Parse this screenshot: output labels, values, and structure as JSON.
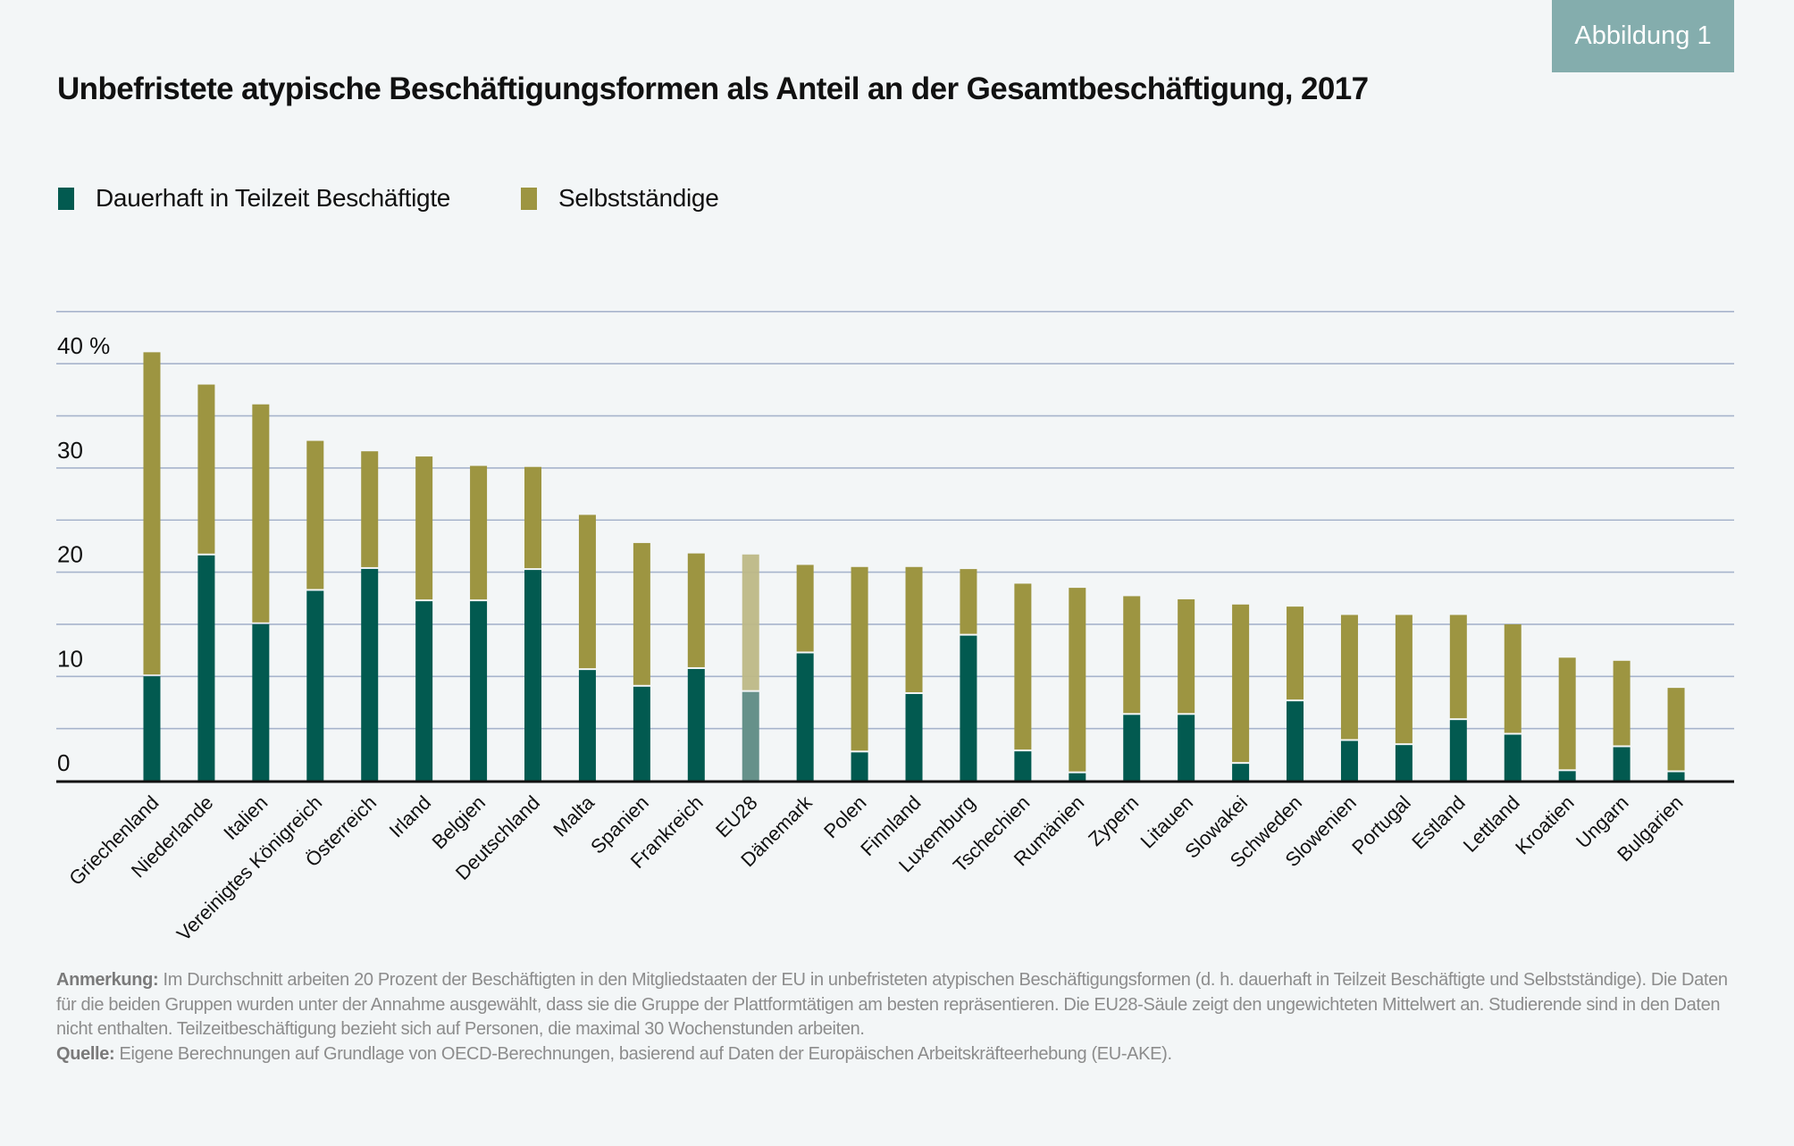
{
  "badge": {
    "label": "Abbildung 1"
  },
  "colors": {
    "parttime": "#025a50",
    "selfemployed": "#9d9541",
    "parttime_highlight": "#66918a",
    "selfemployed_highlight": "#bdb886",
    "highlight_label": "#025a50",
    "gridline": "#a7b4cc",
    "axis": "#111111",
    "badge": "#84adad"
  },
  "legend": [
    {
      "label": "Dauerhaft in Teilzeit Beschäftigte",
      "color": "#025a50"
    },
    {
      "label": "Selbstständige",
      "color": "#9d9541"
    }
  ],
  "footnote": {
    "note_label": "Anmerkung:",
    "note_text": " Im Durchschnitt arbeiten 20 Prozent der Beschäftigten in den Mitgliedstaaten der EU in unbefristeten atypischen Beschäftigungsformen (d. h. dauerhaft in Teilzeit Beschäftigte und Selbstständige). Die Daten für die beiden Gruppen wurden unter der Annahme ausgewählt, dass sie die Gruppe der Plattformtätigen am besten repräsentieren. Die EU28-Säule zeigt den ungewichteten Mittelwert an. Studierende sind in den Daten nicht enthalten. Teilzeitbeschäftigung bezieht sich auf Personen, die maximal 30 Wochenstunden arbeiten.",
    "source_label": "Quelle:",
    "source_text": " Eigene Berechnungen auf Grundlage von OECD-Berechnungen, basierend auf Daten der Europäischen Arbeitskräfteerhebung (EU-AKE)."
  },
  "chart_data": {
    "type": "bar",
    "stacked": true,
    "title": "Unbefristete atypische Beschäftigungsformen als Anteil an der Gesamtbeschäftigung, 2017",
    "xlabel": "",
    "ylabel": "",
    "ylim": [
      0,
      45
    ],
    "yticks": [
      0,
      10,
      20,
      30,
      40
    ],
    "ytick_labels": [
      "0",
      "10",
      "20",
      "30",
      "40 %"
    ],
    "gridlines_every": 5,
    "grid": true,
    "legend_position": "top-left",
    "highlight_category": "EU28",
    "categories": [
      "Griechenland",
      "Niederlande",
      "Italien",
      "Vereinigtes Königreich",
      "Österreich",
      "Irland",
      "Belgien",
      "Deutschland",
      "Malta",
      "Spanien",
      "Frankreich",
      "EU28",
      "Dänemark",
      "Polen",
      "Finnland",
      "Luxemburg",
      "Tschechien",
      "Rumänien",
      "Zypern",
      "Litauen",
      "Slowakei",
      "Schweden",
      "Slowenien",
      "Portugal",
      "Estland",
      "Lettland",
      "Kroatien",
      "Ungarn",
      "Bulgarien"
    ],
    "series": [
      {
        "name": "Dauerhaft in Teilzeit Beschäftigte",
        "values": [
          10.1,
          21.7,
          15.1,
          18.3,
          20.4,
          17.3,
          17.3,
          20.3,
          10.7,
          9.1,
          10.8,
          8.6,
          12.3,
          2.8,
          8.4,
          14.0,
          2.9,
          0.8,
          6.4,
          6.4,
          1.7,
          7.7,
          3.9,
          3.5,
          5.9,
          4.5,
          1.0,
          3.3,
          0.9
        ]
      },
      {
        "name": "Selbstständige",
        "values": [
          31.0,
          16.3,
          21.0,
          14.3,
          11.2,
          13.8,
          12.9,
          9.8,
          14.8,
          13.7,
          11.0,
          13.1,
          8.4,
          17.7,
          12.1,
          6.3,
          16.0,
          17.7,
          11.3,
          11.0,
          15.2,
          9.0,
          12.0,
          12.4,
          10.0,
          10.5,
          10.8,
          8.2,
          8.0
        ]
      }
    ],
    "totals": [
      41.1,
      38.0,
      36.1,
      32.6,
      31.6,
      31.1,
      30.2,
      30.1,
      25.5,
      22.8,
      21.8,
      21.7,
      20.7,
      20.5,
      20.5,
      20.3,
      18.9,
      18.5,
      17.7,
      17.4,
      16.9,
      16.7,
      15.9,
      15.9,
      15.9,
      15.0,
      11.8,
      11.5,
      8.9
    ]
  }
}
